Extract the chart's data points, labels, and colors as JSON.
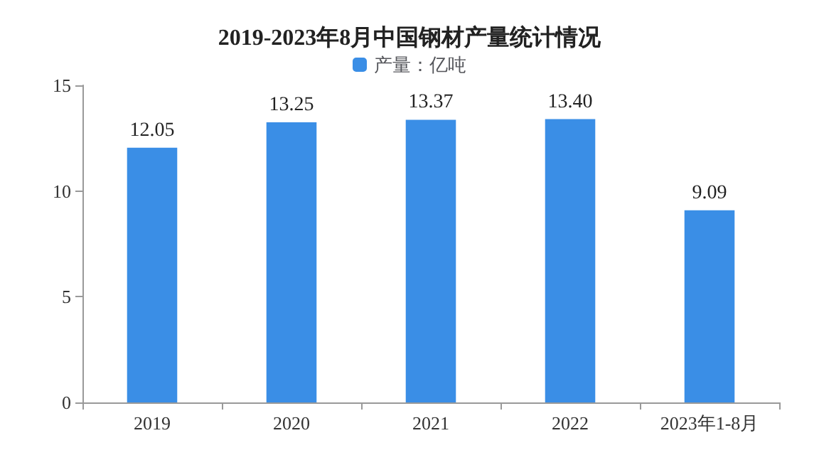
{
  "chart_data": {
    "type": "bar",
    "title": "2019-2023年8月中国钢材产量统计情况",
    "categories": [
      "2019",
      "2020",
      "2021",
      "2022",
      "2023年1-8月"
    ],
    "series": [
      {
        "name": "产量：亿吨",
        "color": "#3a8ee6",
        "values": [
          12.05,
          13.25,
          13.37,
          13.4,
          9.09
        ],
        "value_labels": [
          "12.05",
          "13.25",
          "13.37",
          "13.40",
          "9.09"
        ]
      }
    ],
    "ylim": [
      0,
      15
    ],
    "yticks": [
      0,
      5,
      10,
      15
    ],
    "grid": false,
    "legend": "top"
  }
}
